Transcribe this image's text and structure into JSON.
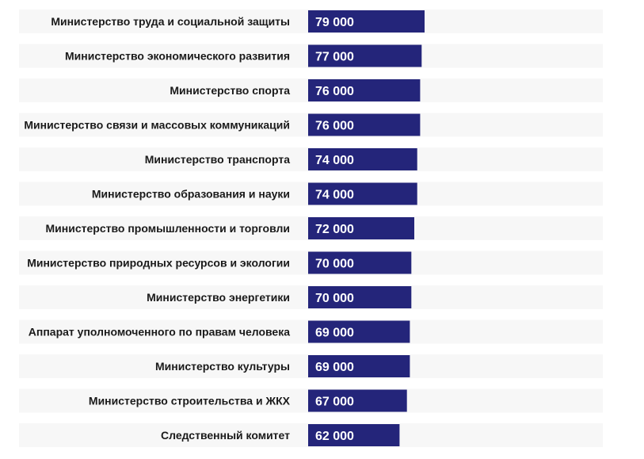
{
  "chart_data": {
    "type": "bar",
    "orientation": "horizontal",
    "categories": [
      "Министерство труда и социальной защиты",
      "Министерство экономического развития",
      "Министерство спорта",
      "Министерство связи и массовых коммуникаций",
      "Министерство транспорта",
      "Министерство образования и науки",
      "Министерство промышленности и торговли",
      "Министерство природных ресурсов и экологии",
      "Министерство энергетики",
      "Аппарат уполномоченного по правам человека",
      "Министерство культуры",
      "Министерство строительства и ЖКХ",
      "Следственный комитет"
    ],
    "values": [
      79000,
      77000,
      76000,
      76000,
      74000,
      74000,
      72000,
      70000,
      70000,
      69000,
      69000,
      67000,
      62000
    ],
    "value_labels": [
      "79 000",
      "77 000",
      "76 000",
      "76 000",
      "74 000",
      "74 000",
      "72 000",
      "70 000",
      "70 000",
      "69 000",
      "69 000",
      "67 000",
      "62 000"
    ],
    "grid": false,
    "legend": "none",
    "colors": {
      "bar": "#24257a",
      "row_band": "#f7f7f7",
      "label_text": "#1a1a1a",
      "value_text": "#ffffff"
    }
  }
}
